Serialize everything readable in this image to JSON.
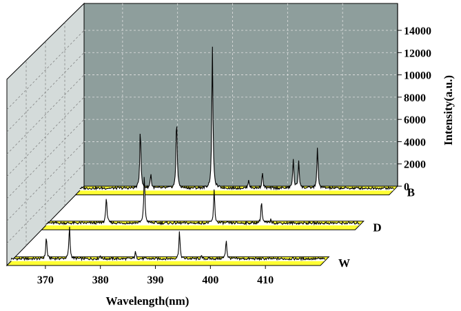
{
  "chart_data": {
    "type": "line",
    "style": "3d-waterfall",
    "title": "",
    "xlabel": "Wavelength(nm)",
    "ylabel": "Intensity(a.u.)",
    "xlim": [
      363,
      420
    ],
    "ylim": [
      0,
      14000
    ],
    "x_ticks": [
      "370",
      "380",
      "390",
      "400",
      "410"
    ],
    "x_tick_values": [
      370,
      380,
      390,
      400,
      410
    ],
    "y_ticks": [
      "0",
      "2000",
      "4000",
      "6000",
      "8000",
      "10000",
      "12000",
      "14000"
    ],
    "y_tick_values": [
      0,
      2000,
      4000,
      6000,
      8000,
      10000,
      12000,
      14000
    ],
    "grid": true,
    "colors": {
      "back_wall": "#8e9e9c",
      "side_wall": "#d4dbda",
      "strip_fill": "#ffff33",
      "line": "#000000",
      "grid": "#e2e2e2"
    },
    "series": [
      {
        "name": "W",
        "baseline": 250,
        "peaks": [
          {
            "x": 369.4,
            "y": 2000
          },
          {
            "x": 373.6,
            "y": 3000
          },
          {
            "x": 379.2,
            "y": 300
          },
          {
            "x": 385.6,
            "y": 600
          },
          {
            "x": 393.6,
            "y": 2500
          },
          {
            "x": 397.6,
            "y": 200
          },
          {
            "x": 402.1,
            "y": 1800
          }
        ]
      },
      {
        "name": "D",
        "baseline": 250,
        "peaks": [
          {
            "x": 374.0,
            "y": 2500
          },
          {
            "x": 380.9,
            "y": 4500
          },
          {
            "x": 393.6,
            "y": 3000
          },
          {
            "x": 402.2,
            "y": 2000
          },
          {
            "x": 403.9,
            "y": 300
          }
        ]
      },
      {
        "name": "B",
        "baseline": 250,
        "peaks": [
          {
            "x": 374.0,
            "y": 5500
          },
          {
            "x": 375.9,
            "y": 1300
          },
          {
            "x": 380.6,
            "y": 6500
          },
          {
            "x": 387.1,
            "y": 13000
          },
          {
            "x": 393.7,
            "y": 800
          },
          {
            "x": 396.2,
            "y": 1400
          },
          {
            "x": 401.8,
            "y": 2600
          },
          {
            "x": 402.8,
            "y": 2500
          },
          {
            "x": 406.2,
            "y": 3600
          }
        ]
      }
    ]
  }
}
